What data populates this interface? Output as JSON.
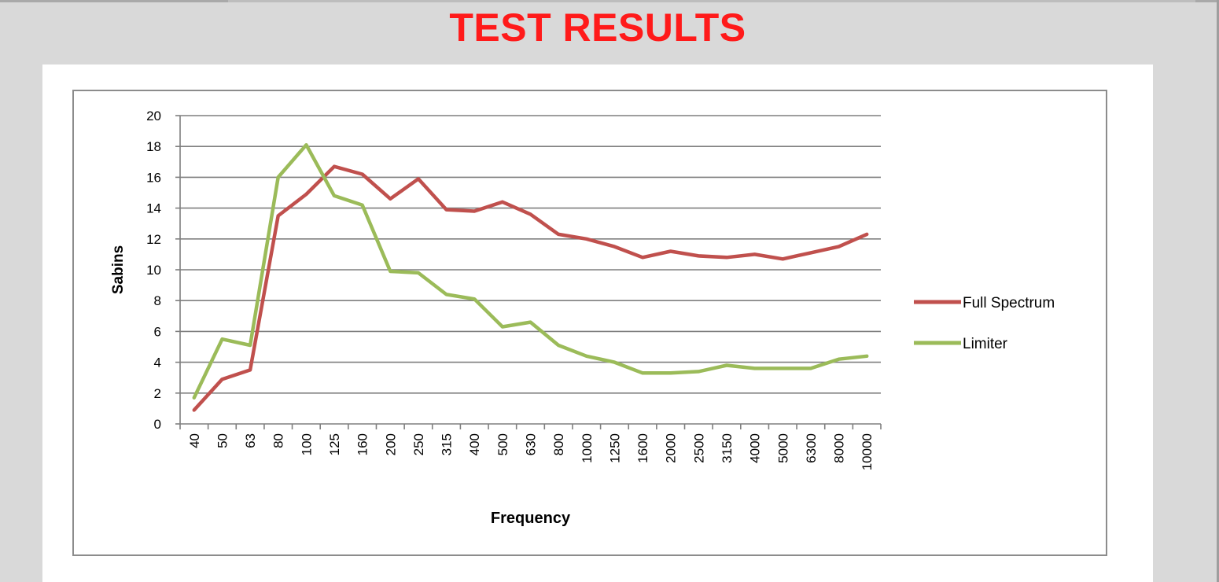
{
  "slide": {
    "title": "TEST RESULTS"
  },
  "chart_data": {
    "type": "line",
    "title": "",
    "xlabel": "Frequency",
    "ylabel": "Sabins",
    "ylim": [
      0,
      20
    ],
    "yticks": [
      0,
      2,
      4,
      6,
      8,
      10,
      12,
      14,
      16,
      18,
      20
    ],
    "grid": true,
    "legend_position": "right",
    "categories": [
      "40",
      "50",
      "63",
      "80",
      "100",
      "125",
      "160",
      "200",
      "250",
      "315",
      "400",
      "500",
      "630",
      "800",
      "1000",
      "1250",
      "1600",
      "2000",
      "2500",
      "3150",
      "4000",
      "5000",
      "6300",
      "8000",
      "10000"
    ],
    "series": [
      {
        "name": "Full Spectrum",
        "color": "#c0504d",
        "values": [
          0.9,
          2.9,
          3.5,
          13.5,
          14.9,
          16.7,
          16.2,
          14.6,
          15.9,
          13.9,
          13.8,
          14.4,
          13.6,
          12.3,
          12.0,
          11.5,
          10.8,
          11.2,
          10.9,
          10.8,
          11.0,
          10.7,
          11.1,
          11.5,
          12.3
        ]
      },
      {
        "name": "Limiter",
        "color": "#9bbb59",
        "values": [
          1.7,
          5.5,
          5.1,
          16.0,
          18.1,
          14.8,
          14.2,
          9.9,
          9.8,
          8.4,
          8.1,
          6.3,
          6.6,
          5.1,
          4.4,
          4.0,
          3.3,
          3.3,
          3.4,
          3.8,
          3.6,
          3.6,
          3.6,
          4.2,
          4.4
        ]
      }
    ]
  }
}
